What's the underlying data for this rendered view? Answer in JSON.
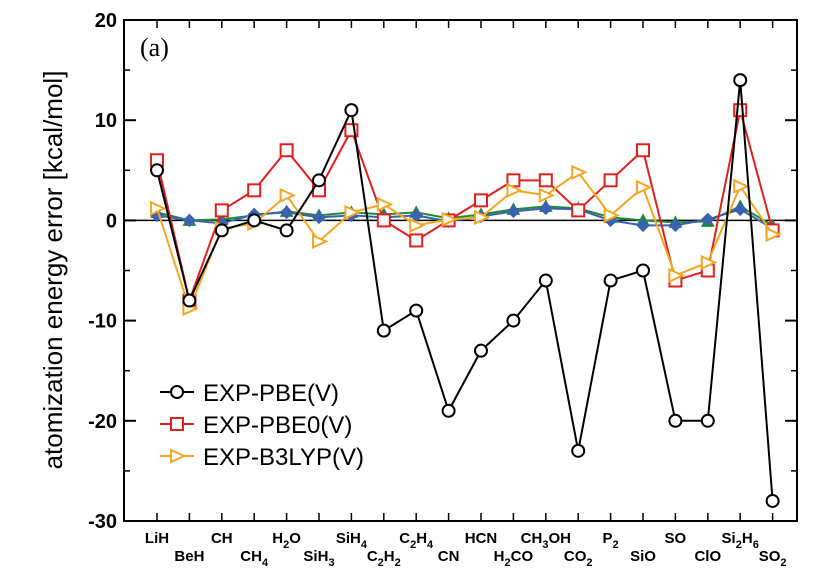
{
  "chart_data": {
    "type": "line",
    "panel_label": "(a)",
    "ylabel": "atomization energy error [kcal/mol]",
    "xlabel": "",
    "ylim": [
      -30,
      20
    ],
    "yticks": [
      "20",
      "10",
      "0",
      "-10",
      "-20",
      "-30"
    ],
    "categories": [
      {
        "name": "LiH",
        "parts": [
          [
            "LiH",
            0
          ]
        ],
        "row": "top"
      },
      {
        "name": "BeH",
        "parts": [
          [
            "BeH",
            0
          ]
        ],
        "row": "bottom"
      },
      {
        "name": "CH",
        "parts": [
          [
            "CH",
            0
          ]
        ],
        "row": "top"
      },
      {
        "name": "CH4",
        "parts": [
          [
            "CH",
            0
          ],
          [
            "4",
            1
          ]
        ],
        "row": "bottom"
      },
      {
        "name": "H2O",
        "parts": [
          [
            "H",
            0
          ],
          [
            "2",
            1
          ],
          [
            "O",
            0
          ]
        ],
        "row": "top"
      },
      {
        "name": "SiH3",
        "parts": [
          [
            "SiH",
            0
          ],
          [
            "3",
            1
          ]
        ],
        "row": "bottom"
      },
      {
        "name": "SiH4",
        "parts": [
          [
            "SiH",
            0
          ],
          [
            "4",
            1
          ]
        ],
        "row": "top"
      },
      {
        "name": "C2H2",
        "parts": [
          [
            "C",
            0
          ],
          [
            "2",
            1
          ],
          [
            "H",
            0
          ],
          [
            "2",
            1
          ]
        ],
        "row": "bottom"
      },
      {
        "name": "C2H4",
        "parts": [
          [
            "C",
            0
          ],
          [
            "2",
            1
          ],
          [
            "H",
            0
          ],
          [
            "4",
            1
          ]
        ],
        "row": "top"
      },
      {
        "name": "CN",
        "parts": [
          [
            "CN",
            0
          ]
        ],
        "row": "bottom"
      },
      {
        "name": "HCN",
        "parts": [
          [
            "HCN",
            0
          ]
        ],
        "row": "top"
      },
      {
        "name": "H2CO",
        "parts": [
          [
            "H",
            0
          ],
          [
            "2",
            1
          ],
          [
            "CO",
            0
          ]
        ],
        "row": "bottom"
      },
      {
        "name": "CH3OH",
        "parts": [
          [
            "CH",
            0
          ],
          [
            "3",
            1
          ],
          [
            "OH",
            0
          ]
        ],
        "row": "top"
      },
      {
        "name": "CO2",
        "parts": [
          [
            "CO",
            0
          ],
          [
            "2",
            1
          ]
        ],
        "row": "bottom"
      },
      {
        "name": "P2",
        "parts": [
          [
            "P",
            0
          ],
          [
            "2",
            1
          ]
        ],
        "row": "top"
      },
      {
        "name": "SiO",
        "parts": [
          [
            "SiO",
            0
          ]
        ],
        "row": "bottom"
      },
      {
        "name": "SO",
        "parts": [
          [
            "SO",
            0
          ]
        ],
        "row": "top"
      },
      {
        "name": "ClO",
        "parts": [
          [
            "ClO",
            0
          ]
        ],
        "row": "bottom"
      },
      {
        "name": "Si2H6",
        "parts": [
          [
            "Si",
            0
          ],
          [
            "2",
            1
          ],
          [
            "H",
            0
          ],
          [
            "6",
            1
          ]
        ],
        "row": "top"
      },
      {
        "name": "SO2",
        "parts": [
          [
            "SO",
            0
          ],
          [
            "2",
            1
          ]
        ],
        "row": "bottom"
      }
    ],
    "series": [
      {
        "name": "EXP-PBE(V)",
        "color": "#000000",
        "marker": "circle",
        "in_legend": true,
        "values": [
          5,
          -8,
          -1,
          0,
          -1,
          4,
          11,
          -11,
          -9,
          -19,
          -13,
          -10,
          -6,
          -23,
          -6,
          -5,
          -20,
          -20,
          14,
          -28
        ]
      },
      {
        "name": "EXP-PBE0(V)",
        "color": "#e0201c",
        "marker": "square",
        "in_legend": true,
        "values": [
          6,
          -8,
          1,
          3,
          7,
          3,
          9,
          0,
          -2,
          0,
          2,
          4,
          4,
          1,
          4,
          7,
          -6,
          -5,
          11,
          -1
        ]
      },
      {
        "name": "EXP-B3LYP(V)",
        "color": "#f5a623",
        "marker": "triangle-right",
        "in_legend": true,
        "values": [
          1.2,
          -8.8,
          -0.8,
          -0.3,
          2.5,
          -2.1,
          0.8,
          1.6,
          -0.5,
          0.1,
          0.3,
          3.0,
          2.5,
          4.8,
          0.5,
          3.3,
          -5.5,
          -4.2,
          3.4,
          -1.4
        ]
      },
      {
        "name": "green",
        "color": "#1f8a3a",
        "marker": "triangle-up",
        "in_legend": false,
        "values": [
          0.8,
          0,
          0.1,
          0.5,
          0.9,
          0.5,
          0.8,
          0.6,
          0.8,
          0.2,
          0.6,
          1.1,
          1.4,
          1.2,
          0.3,
          0,
          -0.2,
          -0.1,
          1.4,
          -0.5
        ]
      },
      {
        "name": "blue",
        "color": "#3a62b0",
        "marker": "diamond",
        "in_legend": false,
        "values": [
          0.5,
          0,
          -0.3,
          0.6,
          0.8,
          0.3,
          0.5,
          0.3,
          0.5,
          -0.1,
          0.4,
          0.9,
          1.2,
          1.1,
          0,
          -0.5,
          -0.5,
          0.1,
          1.1,
          -0.8
        ]
      }
    ]
  }
}
